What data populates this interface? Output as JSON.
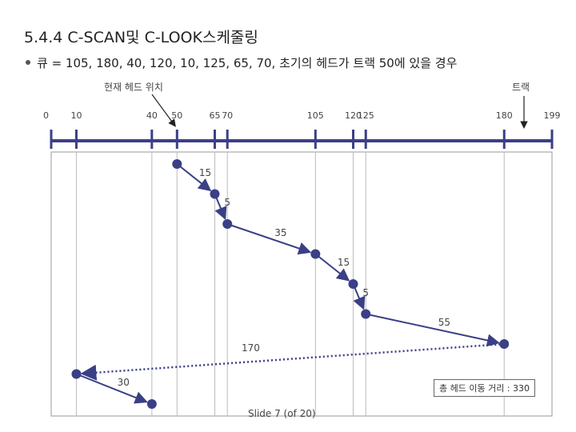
{
  "slide": {
    "title": "5.4.4 C-SCAN및 C-LOOK스케줄링",
    "bullet": "큐 = 105, 180, 40, 120, 10, 125, 65, 70, 초기의 헤드가 트랙 50에 있을 경우",
    "footer": "Slide  7 (of  20)"
  },
  "diagram": {
    "head_label": "현재 헤드 위치",
    "track_label": "트랙",
    "total_label": "총 헤드 이동 거리 : 330",
    "tracks": [
      {
        "label": "0",
        "value": 0,
        "tick": false
      },
      {
        "label": "10",
        "value": 10,
        "tick": true
      },
      {
        "label": "40",
        "value": 40,
        "tick": true
      },
      {
        "label": "50",
        "value": 50,
        "tick": true
      },
      {
        "label": "65",
        "value": 65,
        "tick": true
      },
      {
        "label": "70",
        "value": 70,
        "tick": true
      },
      {
        "label": "105",
        "value": 105,
        "tick": true
      },
      {
        "label": "120",
        "value": 120,
        "tick": true
      },
      {
        "label": "125",
        "value": 125,
        "tick": true
      },
      {
        "label": "180",
        "value": 180,
        "tick": true
      },
      {
        "label": "199",
        "value": 199,
        "tick": false
      }
    ],
    "path": [
      50,
      65,
      70,
      105,
      120,
      125,
      180,
      10,
      40
    ],
    "moves": [
      {
        "distance": "15",
        "style": "solid"
      },
      {
        "distance": "5",
        "style": "solid"
      },
      {
        "distance": "35",
        "style": "solid"
      },
      {
        "distance": "15",
        "style": "solid"
      },
      {
        "distance": "5",
        "style": "solid"
      },
      {
        "distance": "55",
        "style": "solid"
      },
      {
        "distance": "170",
        "style": "dotted"
      },
      {
        "distance": "30",
        "style": "solid"
      }
    ],
    "colors": {
      "axis": "#3a3f86",
      "line": "#3a3f86",
      "frame": "#999999"
    }
  }
}
